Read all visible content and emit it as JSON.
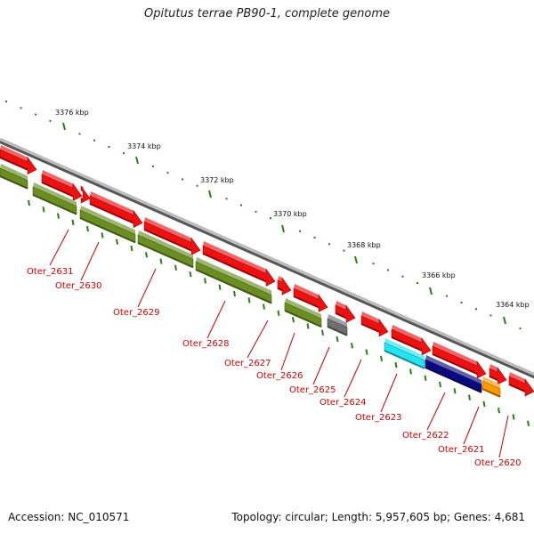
{
  "title": "Opitutus terrae PB90-1, complete genome",
  "footer": {
    "accession": "Accession: NC_010571",
    "summary": "Topology: circular; Length: 5,957,605 bp; Genes: 4,681"
  },
  "colors": {
    "backbone": "#8c8c8c",
    "tick": "#2e7d1a",
    "label": "#cc0000",
    "forward": "#ee1111",
    "reverse": "#6b8e23",
    "grey": "#6f6f6f",
    "cyan": "#22e5f0",
    "navy": "#0a0a80",
    "orange": "#ff9900"
  },
  "scale": [
    {
      "label": "3376 kbp"
    },
    {
      "label": "3374 kbp"
    },
    {
      "label": "3372 kbp"
    },
    {
      "label": "3370 kbp"
    },
    {
      "label": "3368 kbp"
    },
    {
      "label": "3366 kbp"
    },
    {
      "label": "3364 kbp"
    }
  ],
  "genes": [
    {
      "label": "Oter_2631"
    },
    {
      "label": "Oter_2630"
    },
    {
      "label": "Oter_2629"
    },
    {
      "label": "Oter_2628"
    },
    {
      "label": "Oter_2627"
    },
    {
      "label": "Oter_2626"
    },
    {
      "label": "Oter_2625"
    },
    {
      "label": "Oter_2624"
    },
    {
      "label": "Oter_2623"
    },
    {
      "label": "Oter_2622"
    },
    {
      "label": "Oter_2621"
    },
    {
      "label": "Oter_2620"
    }
  ]
}
